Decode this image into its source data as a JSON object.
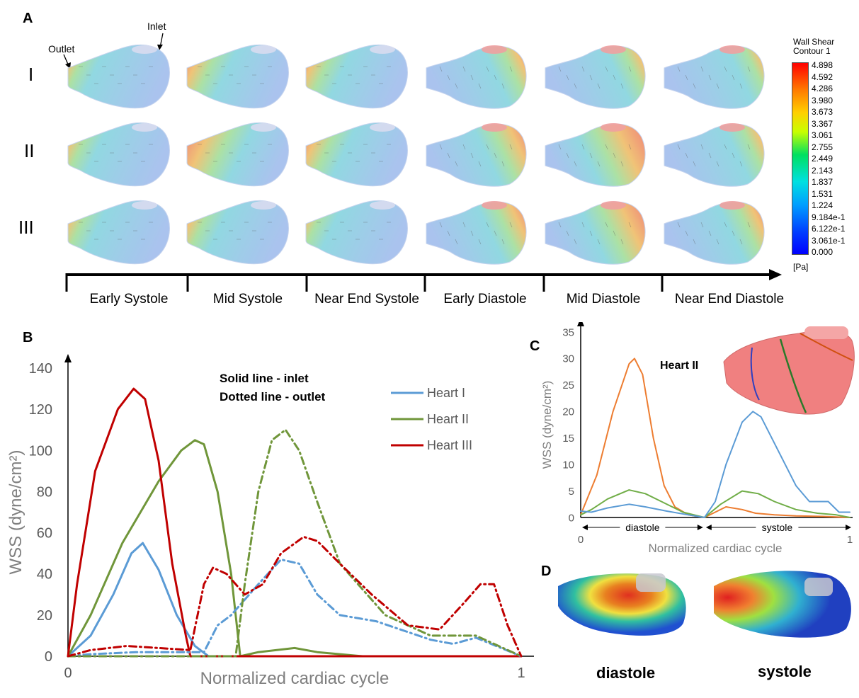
{
  "panelA": {
    "label": "A",
    "rows": [
      "I",
      "II",
      "III"
    ],
    "inlet_label": "Inlet",
    "outlet_label": "Outlet",
    "phases": [
      "Early Systole",
      "Mid Systole",
      "Near End Systole",
      "Early Diastole",
      "Mid Diastole",
      "Near End Diastole"
    ],
    "colorbar": {
      "title1": "Wall Shear",
      "title2": "Contour 1",
      "ticks": [
        "4.898",
        "4.592",
        "4.286",
        "3.980",
        "3.673",
        "3.367",
        "3.061",
        "2.755",
        "2.449",
        "2.143",
        "1.837",
        "1.531",
        "1.224",
        "9.184e-1",
        "6.122e-1",
        "3.061e-1",
        "0.000"
      ],
      "unit": "[Pa]"
    },
    "images": [
      {
        "row": "I",
        "phase": "Early Systole",
        "intensity": 0.25,
        "hot_side": "outlet"
      },
      {
        "row": "I",
        "phase": "Mid Systole",
        "intensity": 0.45,
        "hot_side": "outlet"
      },
      {
        "row": "I",
        "phase": "Near End Systole",
        "intensity": 0.4,
        "hot_side": "outlet"
      },
      {
        "row": "I",
        "phase": "Early Diastole",
        "intensity": 0.35,
        "hot_side": "inlet"
      },
      {
        "row": "I",
        "phase": "Mid Diastole",
        "intensity": 0.3,
        "hot_side": "inlet"
      },
      {
        "row": "I",
        "phase": "Near End Diastole",
        "intensity": 0.25,
        "hot_side": "inlet"
      },
      {
        "row": "II",
        "phase": "Early Systole",
        "intensity": 0.3,
        "hot_side": "outlet"
      },
      {
        "row": "II",
        "phase": "Mid Systole",
        "intensity": 0.7,
        "hot_side": "outlet"
      },
      {
        "row": "II",
        "phase": "Near End Systole",
        "intensity": 0.45,
        "hot_side": "outlet"
      },
      {
        "row": "II",
        "phase": "Early Diastole",
        "intensity": 0.5,
        "hot_side": "inlet"
      },
      {
        "row": "II",
        "phase": "Mid Diastole",
        "intensity": 0.8,
        "hot_side": "inlet"
      },
      {
        "row": "II",
        "phase": "Near End Diastole",
        "intensity": 0.3,
        "hot_side": "inlet"
      },
      {
        "row": "III",
        "phase": "Early Systole",
        "intensity": 0.3,
        "hot_side": "outlet"
      },
      {
        "row": "III",
        "phase": "Mid Systole",
        "intensity": 0.35,
        "hot_side": "outlet"
      },
      {
        "row": "III",
        "phase": "Near End Systole",
        "intensity": 0.25,
        "hot_side": "outlet"
      },
      {
        "row": "III",
        "phase": "Early Diastole",
        "intensity": 0.45,
        "hot_side": "inlet"
      },
      {
        "row": "III",
        "phase": "Mid Diastole",
        "intensity": 0.7,
        "hot_side": "inlet"
      },
      {
        "row": "III",
        "phase": "Near End Diastole",
        "intensity": 0.4,
        "hot_side": "inlet"
      }
    ]
  },
  "panelB": {
    "label": "B",
    "note_solid": "Solid line - inlet",
    "note_dotted": "Dotted line - outlet"
  },
  "panelC": {
    "label": "C",
    "inset_label": "Heart II",
    "diastole_label": "diastole",
    "systole_label": "systole"
  },
  "panelD": {
    "label": "D",
    "caption_left": "diastole",
    "caption_right": "systole"
  },
  "chart_data": [
    {
      "type": "line",
      "panel": "B",
      "title": "",
      "xlabel": "Normalized cardiac cycle",
      "ylabel": "WSS  (dyne/cm²)",
      "xlim": [
        0,
        1
      ],
      "ylim": [
        0,
        140
      ],
      "yticks": [
        "0",
        "20",
        "40",
        "60",
        "80",
        "100",
        "120",
        "140"
      ],
      "xticks": [
        "0",
        "1"
      ],
      "legend_position": "top-right",
      "legend": [
        {
          "name": "Heart I",
          "color": "#5B9BD5"
        },
        {
          "name": "Heart II",
          "color": "#70963A"
        },
        {
          "name": "Heart III",
          "color": "#C00000"
        }
      ],
      "series": [
        {
          "heart": "Heart I",
          "style": "solid",
          "color": "#5B9BD5",
          "x": [
            0,
            0.05,
            0.1,
            0.14,
            0.165,
            0.2,
            0.24,
            0.28,
            0.31,
            0.35,
            1
          ],
          "y": [
            0,
            10,
            30,
            50,
            55,
            42,
            20,
            5,
            0,
            0,
            0
          ]
        },
        {
          "heart": "Heart II",
          "style": "solid",
          "color": "#70963A",
          "x": [
            0,
            0.05,
            0.12,
            0.2,
            0.25,
            0.28,
            0.3,
            0.33,
            0.36,
            0.38,
            0.42,
            0.5,
            0.55,
            0.6,
            0.65,
            1
          ],
          "y": [
            0,
            20,
            55,
            85,
            100,
            105,
            103,
            80,
            40,
            0,
            2,
            4,
            2,
            1,
            0,
            0
          ]
        },
        {
          "heart": "Heart III",
          "style": "solid",
          "color": "#C00000",
          "x": [
            0,
            0.02,
            0.06,
            0.11,
            0.145,
            0.17,
            0.2,
            0.23,
            0.26,
            0.27,
            1
          ],
          "y": [
            0,
            35,
            90,
            120,
            130,
            125,
            95,
            45,
            10,
            0,
            0
          ]
        },
        {
          "heart": "Heart I",
          "style": "dashdot",
          "color": "#5B9BD5",
          "x": [
            0,
            0.05,
            0.15,
            0.25,
            0.3,
            0.33,
            0.36,
            0.42,
            0.47,
            0.51,
            0.55,
            0.6,
            0.68,
            0.8,
            0.85,
            0.9,
            1
          ],
          "y": [
            0,
            1,
            2,
            2,
            2,
            15,
            20,
            35,
            47,
            45,
            30,
            20,
            17,
            8,
            6,
            9,
            0
          ]
        },
        {
          "heart": "Heart II",
          "style": "dashdot",
          "color": "#70963A",
          "x": [
            0,
            0.1,
            0.2,
            0.3,
            0.37,
            0.39,
            0.42,
            0.45,
            0.48,
            0.51,
            0.55,
            0.6,
            0.7,
            0.8,
            0.9,
            1
          ],
          "y": [
            0,
            0,
            0,
            0,
            0,
            35,
            80,
            105,
            110,
            100,
            75,
            45,
            20,
            10,
            10,
            0
          ]
        },
        {
          "heart": "Heart III",
          "style": "dashdot",
          "color": "#C00000",
          "x": [
            0,
            0.05,
            0.13,
            0.2,
            0.27,
            0.3,
            0.32,
            0.35,
            0.39,
            0.43,
            0.47,
            0.52,
            0.55,
            0.6,
            0.67,
            0.75,
            0.82,
            0.87,
            0.91,
            0.94,
            0.97,
            1
          ],
          "y": [
            0,
            3,
            5,
            4,
            3,
            35,
            43,
            40,
            30,
            35,
            50,
            58,
            56,
            45,
            30,
            15,
            13,
            25,
            35,
            35,
            15,
            0
          ]
        }
      ]
    },
    {
      "type": "line",
      "panel": "C",
      "title": "",
      "xlabel": "Normalized cardiac cycle",
      "ylabel": "WSS  (dyne/cm²)",
      "xlim": [
        0,
        1
      ],
      "ylim": [
        0,
        35
      ],
      "yticks": [
        "0",
        "5",
        "10",
        "15",
        "20",
        "25",
        "30",
        "35"
      ],
      "xticks": [
        "0",
        "1"
      ],
      "series": [
        {
          "color": "#ED7D31",
          "style": "solid",
          "x": [
            0,
            0.02,
            0.06,
            0.12,
            0.18,
            0.2,
            0.23,
            0.27,
            0.31,
            0.35,
            0.4,
            0.46,
            0.5,
            0.54,
            0.6,
            0.65,
            0.72,
            0.8,
            0.9,
            1
          ],
          "y": [
            0.5,
            3,
            8,
            20,
            29,
            30,
            27,
            15,
            6,
            2,
            0.5,
            0,
            1,
            2,
            1.5,
            0.8,
            0.5,
            0.3,
            0.2,
            0
          ]
        },
        {
          "color": "#70AD47",
          "style": "solid",
          "x": [
            0,
            0.04,
            0.1,
            0.18,
            0.24,
            0.3,
            0.38,
            0.46,
            0.52,
            0.6,
            0.66,
            0.72,
            0.8,
            0.88,
            0.95,
            1
          ],
          "y": [
            0.5,
            1.5,
            3.5,
            5.2,
            4.5,
            3,
            1,
            0,
            2.5,
            5,
            4.5,
            3,
            1.5,
            0.8,
            0.5,
            0
          ]
        },
        {
          "color": "#5B9BD5",
          "style": "solid",
          "x": [
            0,
            0.04,
            0.1,
            0.18,
            0.24,
            0.32,
            0.4,
            0.46,
            0.5,
            0.54,
            0.6,
            0.64,
            0.67,
            0.72,
            0.8,
            0.85,
            0.88,
            0.92,
            0.96,
            1
          ],
          "y": [
            1.2,
            1,
            1.8,
            2.5,
            2,
            1.2,
            0.5,
            0,
            3,
            10,
            18,
            20,
            19,
            14,
            6,
            3,
            3,
            3,
            1,
            1
          ]
        }
      ]
    }
  ]
}
